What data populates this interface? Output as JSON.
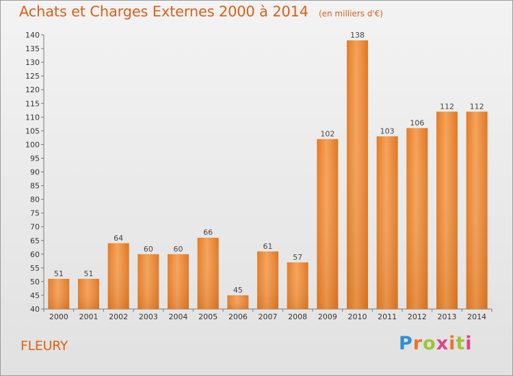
{
  "chart_data": {
    "type": "bar",
    "title": "Achats et Charges Externes 2000 à 2014",
    "unit": "(en milliers d'€)",
    "categories": [
      "2000",
      "2001",
      "2002",
      "2003",
      "2004",
      "2005",
      "2006",
      "2007",
      "2008",
      "2009",
      "2010",
      "2011",
      "2012",
      "2013",
      "2014"
    ],
    "values": [
      51,
      51,
      64,
      60,
      60,
      66,
      45,
      61,
      57,
      102,
      138,
      103,
      106,
      112,
      112
    ],
    "ylim": [
      40,
      140
    ],
    "yticks": [
      40,
      45,
      50,
      55,
      60,
      65,
      70,
      75,
      80,
      85,
      90,
      95,
      100,
      105,
      110,
      115,
      120,
      125,
      130,
      135,
      140
    ],
    "bar_color": "#f0913b",
    "grid": false,
    "legend": "none"
  },
  "footer": {
    "location": "FLEURY",
    "brand": "Proxiti"
  }
}
